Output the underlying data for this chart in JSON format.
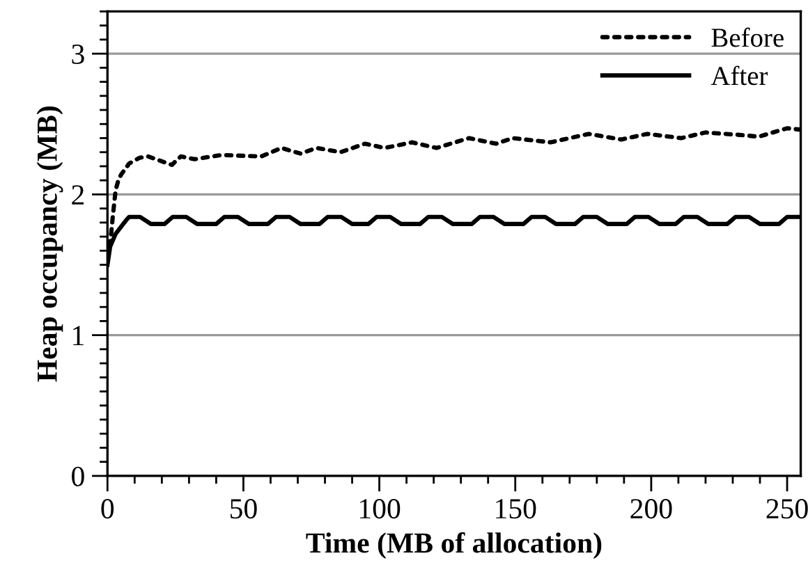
{
  "chart_data": {
    "type": "line",
    "xlabel": "Time (MB of allocation)",
    "ylabel": "Heap occupancy (MB)",
    "xlim": [
      0,
      255
    ],
    "xticks": [
      0,
      50,
      100,
      150,
      200,
      250
    ],
    "ylim": [
      0,
      3.3
    ],
    "yticks": [
      0,
      1,
      2,
      3
    ],
    "grid": "y",
    "legend": "top right",
    "series": [
      {
        "name": "Before",
        "color": "#000000",
        "line_style": "dotted",
        "x": [
          0,
          1,
          2,
          3,
          4,
          5,
          8,
          11.8,
          15,
          23.7,
          27,
          32,
          42,
          56.6,
          64,
          71,
          77,
          85.7,
          94.7,
          102,
          112,
          121,
          133,
          143,
          149,
          163,
          177,
          189,
          198.5,
          211,
          220,
          234.5,
          239.5,
          250,
          255
        ],
        "values": [
          1.55,
          1.65,
          1.85,
          2.03,
          2.1,
          2.14,
          2.22,
          2.26,
          2.27,
          2.21,
          2.27,
          2.25,
          2.28,
          2.27,
          2.33,
          2.29,
          2.33,
          2.3,
          2.36,
          2.33,
          2.37,
          2.33,
          2.4,
          2.36,
          2.4,
          2.37,
          2.43,
          2.39,
          2.43,
          2.4,
          2.44,
          2.42,
          2.41,
          2.47,
          2.46
        ]
      },
      {
        "name": "After",
        "color": "#000000",
        "line_style": "solid",
        "x": [
          0,
          1,
          3,
          5,
          7,
          8,
          12,
          16,
          21,
          24,
          29,
          33,
          40,
          43,
          48,
          52,
          59,
          62,
          67,
          71,
          78,
          81,
          86,
          90,
          96,
          99,
          104,
          108,
          115,
          118,
          123,
          127,
          134,
          137,
          142,
          146,
          153,
          156,
          161,
          165,
          172,
          175,
          180,
          184,
          191,
          194,
          199,
          203,
          209,
          212,
          217,
          221,
          228,
          231,
          236,
          240,
          247,
          250,
          255
        ],
        "values": [
          1.5,
          1.63,
          1.72,
          1.77,
          1.82,
          1.84,
          1.84,
          1.79,
          1.79,
          1.84,
          1.84,
          1.79,
          1.79,
          1.84,
          1.84,
          1.79,
          1.79,
          1.84,
          1.84,
          1.79,
          1.79,
          1.84,
          1.84,
          1.79,
          1.79,
          1.84,
          1.84,
          1.79,
          1.79,
          1.84,
          1.84,
          1.79,
          1.79,
          1.84,
          1.84,
          1.79,
          1.79,
          1.84,
          1.84,
          1.79,
          1.79,
          1.84,
          1.84,
          1.79,
          1.79,
          1.84,
          1.84,
          1.79,
          1.79,
          1.84,
          1.84,
          1.79,
          1.79,
          1.84,
          1.84,
          1.79,
          1.79,
          1.84,
          1.84
        ]
      }
    ]
  }
}
